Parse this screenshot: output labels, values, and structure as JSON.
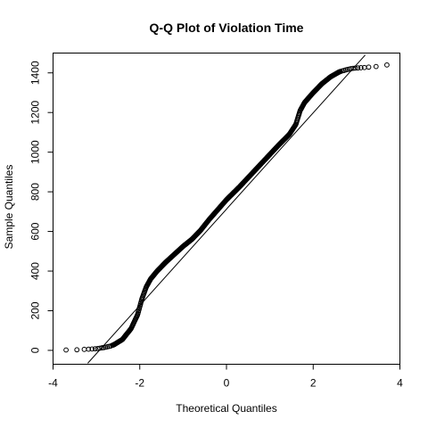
{
  "chart_data": {
    "type": "scatter",
    "title": "Q-Q Plot of Violation Time",
    "xlabel": "Theoretical Quantiles",
    "ylabel": "Sample Quantiles",
    "xlim": [
      -4,
      4
    ],
    "ylim": [
      -70,
      1500
    ],
    "x_ticks": [
      -4,
      -2,
      0,
      2,
      4
    ],
    "y_ticks": [
      0,
      200,
      400,
      600,
      800,
      1000,
      1200,
      1400
    ],
    "grid": false,
    "reference_line": [
      {
        "x": -3.2,
        "y": -65
      },
      {
        "x": 3.2,
        "y": 1490
      }
    ],
    "curve_knots": [
      {
        "x": -3.7,
        "y": 2
      },
      {
        "x": -3.45,
        "y": 3
      },
      {
        "x": -3.2,
        "y": 5
      },
      {
        "x": -3.0,
        "y": 8
      },
      {
        "x": -2.8,
        "y": 15
      },
      {
        "x": -2.6,
        "y": 28
      },
      {
        "x": -2.4,
        "y": 55
      },
      {
        "x": -2.2,
        "y": 110
      },
      {
        "x": -2.05,
        "y": 180
      },
      {
        "x": -1.95,
        "y": 260
      },
      {
        "x": -1.85,
        "y": 320
      },
      {
        "x": -1.75,
        "y": 360
      },
      {
        "x": -1.6,
        "y": 400
      },
      {
        "x": -1.4,
        "y": 445
      },
      {
        "x": -1.2,
        "y": 485
      },
      {
        "x": -1.0,
        "y": 525
      },
      {
        "x": -0.8,
        "y": 560
      },
      {
        "x": -0.6,
        "y": 605
      },
      {
        "x": -0.4,
        "y": 660
      },
      {
        "x": -0.2,
        "y": 710
      },
      {
        "x": 0.0,
        "y": 760
      },
      {
        "x": 0.3,
        "y": 825
      },
      {
        "x": 0.6,
        "y": 895
      },
      {
        "x": 0.9,
        "y": 965
      },
      {
        "x": 1.2,
        "y": 1035
      },
      {
        "x": 1.45,
        "y": 1090
      },
      {
        "x": 1.6,
        "y": 1140
      },
      {
        "x": 1.7,
        "y": 1210
      },
      {
        "x": 1.8,
        "y": 1250
      },
      {
        "x": 2.0,
        "y": 1300
      },
      {
        "x": 2.2,
        "y": 1345
      },
      {
        "x": 2.4,
        "y": 1380
      },
      {
        "x": 2.6,
        "y": 1405
      },
      {
        "x": 2.8,
        "y": 1418
      },
      {
        "x": 3.0,
        "y": 1425
      },
      {
        "x": 3.2,
        "y": 1428
      },
      {
        "x": 3.4,
        "y": 1432
      },
      {
        "x": 3.7,
        "y": 1440
      }
    ],
    "points": [
      {
        "x": -3.7,
        "y": 2
      },
      {
        "x": -3.45,
        "y": 3
      },
      {
        "x": -3.28,
        "y": 5
      },
      {
        "x": -3.18,
        "y": 6
      },
      {
        "x": -3.1,
        "y": 7
      },
      {
        "x": -3.03,
        "y": 8
      },
      {
        "x": -2.97,
        "y": 9
      },
      {
        "x": -2.92,
        "y": 11
      },
      {
        "x": -2.87,
        "y": 13
      },
      {
        "x": -2.83,
        "y": 14
      },
      {
        "x": -2.79,
        "y": 16
      },
      {
        "x": -2.75,
        "y": 18
      },
      {
        "x": -2.71,
        "y": 20
      },
      {
        "x": -2.67,
        "y": 22
      },
      {
        "x": 2.67,
        "y": 1410
      },
      {
        "x": 2.71,
        "y": 1412
      },
      {
        "x": 2.75,
        "y": 1415
      },
      {
        "x": 2.79,
        "y": 1417
      },
      {
        "x": 2.83,
        "y": 1419
      },
      {
        "x": 2.87,
        "y": 1421
      },
      {
        "x": 2.92,
        "y": 1423
      },
      {
        "x": 2.97,
        "y": 1424
      },
      {
        "x": 3.03,
        "y": 1425
      },
      {
        "x": 3.1,
        "y": 1426
      },
      {
        "x": 3.18,
        "y": 1427
      },
      {
        "x": 3.28,
        "y": 1429
      },
      {
        "x": 3.45,
        "y": 1432
      },
      {
        "x": 3.7,
        "y": 1440
      }
    ]
  }
}
